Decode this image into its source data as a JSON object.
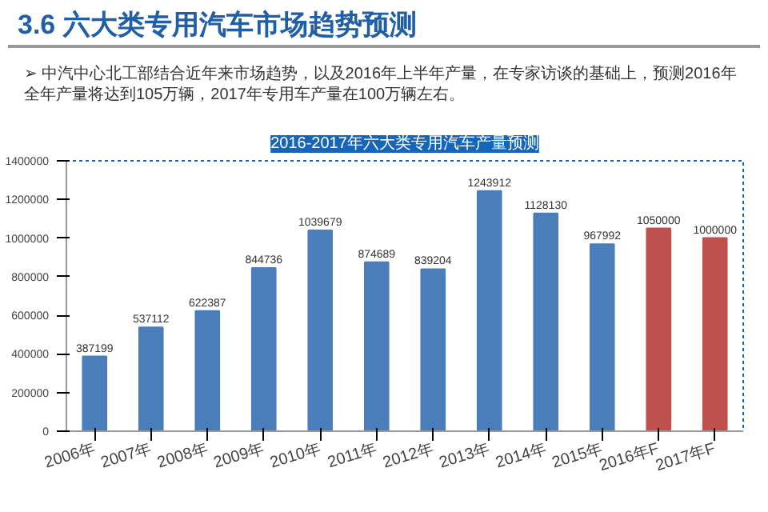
{
  "chart_data": {
    "type": "bar",
    "title": "2016-2017年六大类专用汽车产量预测",
    "annotations": [
      "3.6 六大类专用汽车市场趋势预测",
      "➢ 中汽中心北工部结合近年来市场趋势，以及2016年上半年产量，在专家访谈的基础上，预测2016年全年产量将达到105万辆，2017年专用车产量在100万辆左右。"
    ],
    "categories": [
      "2006年",
      "2007年",
      "2008年",
      "2009年",
      "2010年",
      "2011年",
      "2012年",
      "2013年",
      "2014年",
      "2015年",
      "2016年F",
      "2017年F"
    ],
    "values": [
      387199,
      537112,
      622387,
      844736,
      1039679,
      874689,
      839204,
      1243912,
      1128130,
      967992,
      1050000,
      1000000
    ],
    "colors": [
      "#4a7ebb",
      "#4a7ebb",
      "#4a7ebb",
      "#4a7ebb",
      "#4a7ebb",
      "#4a7ebb",
      "#4a7ebb",
      "#4a7ebb",
      "#4a7ebb",
      "#4a7ebb",
      "#c0504d",
      "#c0504d"
    ],
    "ylim": [
      0,
      1400000
    ],
    "yticks": [
      0,
      200000,
      400000,
      600000,
      800000,
      1000000,
      1200000,
      1400000
    ],
    "data_labels": true,
    "grid": false
  }
}
